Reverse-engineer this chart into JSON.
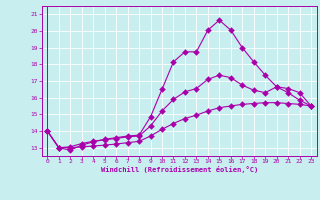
{
  "xlabel": "Windchill (Refroidissement éolien,°C)",
  "background_color": "#c8eef0",
  "line_color": "#aa00aa",
  "xlim": [
    -0.5,
    23.5
  ],
  "ylim": [
    12.5,
    21.5
  ],
  "xticks": [
    0,
    1,
    2,
    3,
    4,
    5,
    6,
    7,
    8,
    9,
    10,
    11,
    12,
    13,
    14,
    15,
    16,
    17,
    18,
    19,
    20,
    21,
    22,
    23
  ],
  "yticks": [
    13,
    14,
    15,
    16,
    17,
    18,
    19,
    20,
    21
  ],
  "series1_x": [
    0,
    1,
    2,
    3,
    4,
    5,
    6,
    7,
    8,
    9,
    10,
    11,
    12,
    13,
    14,
    15,
    16,
    17,
    18,
    19,
    20,
    21,
    22,
    23
  ],
  "series1_y": [
    14.0,
    13.0,
    12.85,
    13.15,
    13.35,
    13.5,
    13.6,
    13.7,
    13.75,
    14.85,
    16.5,
    18.15,
    18.75,
    18.75,
    20.05,
    20.65,
    20.05,
    19.0,
    18.15,
    17.35,
    16.65,
    16.3,
    15.85,
    15.5
  ],
  "series2_x": [
    0,
    1,
    2,
    3,
    4,
    5,
    6,
    7,
    8,
    9,
    10,
    11,
    12,
    13,
    14,
    15,
    16,
    17,
    18,
    19,
    20,
    21,
    22,
    23
  ],
  "series2_y": [
    14.0,
    13.0,
    13.05,
    13.25,
    13.38,
    13.48,
    13.55,
    13.65,
    13.7,
    14.3,
    15.2,
    15.9,
    16.35,
    16.55,
    17.1,
    17.35,
    17.2,
    16.75,
    16.45,
    16.3,
    16.65,
    16.55,
    16.3,
    15.5
  ],
  "series3_x": [
    0,
    1,
    2,
    3,
    4,
    5,
    6,
    7,
    8,
    9,
    10,
    11,
    12,
    13,
    14,
    15,
    16,
    17,
    18,
    19,
    20,
    21,
    22,
    23
  ],
  "series3_y": [
    14.0,
    13.0,
    13.0,
    13.05,
    13.1,
    13.15,
    13.22,
    13.3,
    13.38,
    13.7,
    14.1,
    14.45,
    14.75,
    14.95,
    15.2,
    15.4,
    15.5,
    15.6,
    15.65,
    15.7,
    15.7,
    15.65,
    15.6,
    15.5
  ]
}
